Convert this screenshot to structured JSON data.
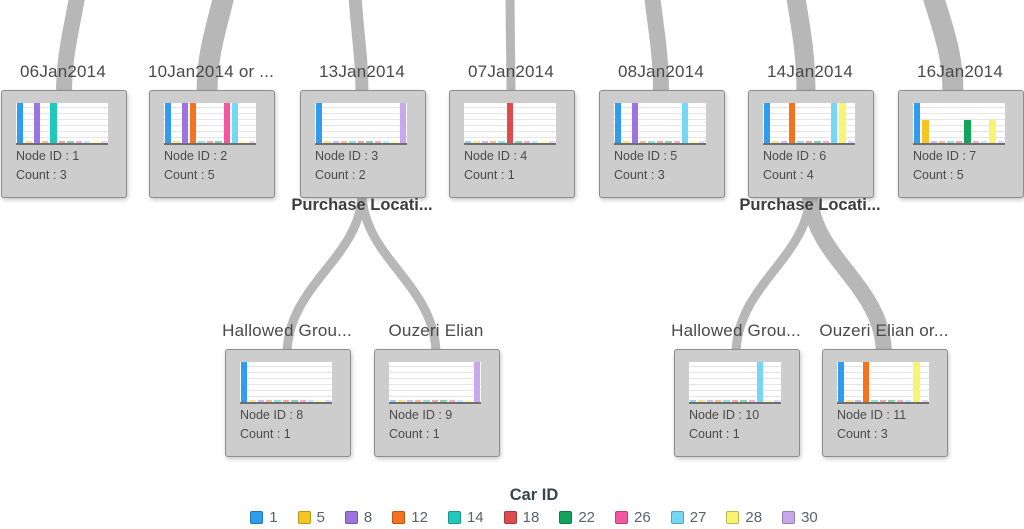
{
  "ui": {
    "link_color": "#b7b7b7"
  },
  "legend": {
    "title": "Car ID",
    "items": [
      {
        "id": "1",
        "color": "#2E9CEF"
      },
      {
        "id": "5",
        "color": "#F5C623"
      },
      {
        "id": "8",
        "color": "#9B74E0"
      },
      {
        "id": "12",
        "color": "#F4731F"
      },
      {
        "id": "14",
        "color": "#22C7BB"
      },
      {
        "id": "18",
        "color": "#DC4B4E"
      },
      {
        "id": "22",
        "color": "#12A35C"
      },
      {
        "id": "26",
        "color": "#F2579F"
      },
      {
        "id": "27",
        "color": "#76D6F5"
      },
      {
        "id": "28",
        "color": "#F8F46E"
      },
      {
        "id": "30",
        "color": "#C7A8EC"
      }
    ]
  },
  "branch_labels": [
    {
      "text": "Purchase Locati..."
    },
    {
      "text": "Purchase Locati..."
    }
  ],
  "nodes": [
    {
      "title": "06Jan2014",
      "node_id_label": "Node ID : 1",
      "count_label": "Count : 3",
      "count": 3,
      "bars": [
        {
          "car": "1",
          "h": 1
        },
        {
          "car": "8",
          "h": 1
        },
        {
          "car": "14",
          "h": 1
        }
      ]
    },
    {
      "title": "10Jan2014 or ...",
      "node_id_label": "Node ID : 2",
      "count_label": "Count : 5",
      "count": 5,
      "bars": [
        {
          "car": "1",
          "h": 1
        },
        {
          "car": "8",
          "h": 1
        },
        {
          "car": "12",
          "h": 1
        },
        {
          "car": "26",
          "h": 1
        },
        {
          "car": "27",
          "h": 1
        }
      ]
    },
    {
      "title": "13Jan2014",
      "node_id_label": "Node ID : 3",
      "count_label": "Count : 2",
      "count": 2,
      "bars": [
        {
          "car": "1",
          "h": 1
        },
        {
          "car": "30",
          "h": 1
        }
      ]
    },
    {
      "title": "07Jan2014",
      "node_id_label": "Node ID : 4",
      "count_label": "Count : 1",
      "count": 1,
      "bars": [
        {
          "car": "18",
          "h": 1
        }
      ]
    },
    {
      "title": "08Jan2014",
      "node_id_label": "Node ID : 5",
      "count_label": "Count : 3",
      "count": 3,
      "bars": [
        {
          "car": "1",
          "h": 1
        },
        {
          "car": "8",
          "h": 1
        },
        {
          "car": "27",
          "h": 1
        }
      ]
    },
    {
      "title": "14Jan2014",
      "node_id_label": "Node ID : 6",
      "count_label": "Count : 4",
      "count": 4,
      "bars": [
        {
          "car": "1",
          "h": 1
        },
        {
          "car": "12",
          "h": 1
        },
        {
          "car": "27",
          "h": 1
        },
        {
          "car": "28",
          "h": 1
        }
      ]
    },
    {
      "title": "16Jan2014",
      "node_id_label": "Node ID : 7",
      "count_label": "Count : 5",
      "count": 5,
      "bars": [
        {
          "car": "1",
          "h": 1
        },
        {
          "car": "5",
          "h": 0.58
        },
        {
          "car": "22",
          "h": 0.58
        },
        {
          "car": "28",
          "h": 0.58
        }
      ]
    },
    {
      "title": "Hallowed Grou...",
      "node_id_label": "Node ID : 8",
      "count_label": "Count : 1",
      "count": 1,
      "bars": [
        {
          "car": "1",
          "h": 1
        }
      ]
    },
    {
      "title": "Ouzeri Elian",
      "node_id_label": "Node ID : 9",
      "count_label": "Count : 1",
      "count": 1,
      "bars": [
        {
          "car": "30",
          "h": 1
        }
      ]
    },
    {
      "title": "Hallowed Grou...",
      "node_id_label": "Node ID : 10",
      "count_label": "Count : 1",
      "count": 1,
      "bars": [
        {
          "car": "27",
          "h": 1
        }
      ]
    },
    {
      "title": "Ouzeri Elian or...",
      "node_id_label": "Node ID : 11",
      "count_label": "Count : 3",
      "count": 3,
      "bars": [
        {
          "car": "1",
          "h": 1
        },
        {
          "car": "12",
          "h": 1
        },
        {
          "car": "28",
          "h": 1
        }
      ]
    }
  ],
  "edges": [
    {
      "from_node_id": null,
      "to_node_id": 1
    },
    {
      "from_node_id": null,
      "to_node_id": 2
    },
    {
      "from_node_id": null,
      "to_node_id": 3
    },
    {
      "from_node_id": null,
      "to_node_id": 4
    },
    {
      "from_node_id": null,
      "to_node_id": 5
    },
    {
      "from_node_id": null,
      "to_node_id": 6
    },
    {
      "from_node_id": null,
      "to_node_id": 7
    },
    {
      "from_node_id": 3,
      "to_node_id": 8
    },
    {
      "from_node_id": 3,
      "to_node_id": 9
    },
    {
      "from_node_id": 6,
      "to_node_id": 10
    },
    {
      "from_node_id": 6,
      "to_node_id": 11
    }
  ]
}
